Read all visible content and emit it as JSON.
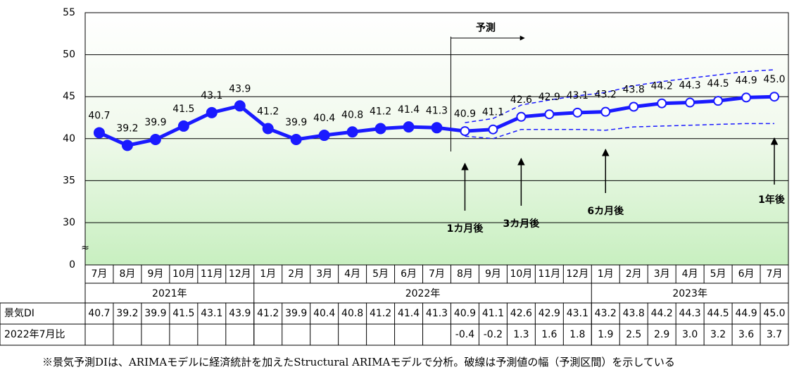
{
  "chart_data": {
    "type": "line",
    "ylim": [
      0,
      55
    ],
    "axis_break": [
      0,
      30
    ],
    "yticks": [
      0,
      30,
      35,
      40,
      45,
      50,
      55
    ],
    "categories": [
      "7月",
      "8月",
      "9月",
      "10月",
      "11月",
      "12月",
      "1月",
      "2月",
      "3月",
      "4月",
      "5月",
      "6月",
      "7月",
      "8月",
      "9月",
      "10月",
      "11月",
      "12月",
      "1月",
      "2月",
      "3月",
      "4月",
      "5月",
      "6月",
      "7月"
    ],
    "years": [
      "2021年",
      "2022年",
      "2023年"
    ],
    "series": [
      {
        "name": "景気DI",
        "color": "#1a1aff",
        "values": [
          40.7,
          39.2,
          39.9,
          41.5,
          43.1,
          43.9,
          41.2,
          39.9,
          40.4,
          40.8,
          41.2,
          41.4,
          41.3,
          40.9,
          41.1,
          42.6,
          42.9,
          43.1,
          43.2,
          43.8,
          44.2,
          44.3,
          44.5,
          44.9,
          45.0
        ],
        "value_labels": [
          "40.7",
          "39.2",
          "39.9",
          "41.5",
          "43.1",
          "43.9",
          "41.2",
          "39.9",
          "40.4",
          "40.8",
          "41.2",
          "41.4",
          "41.3",
          "40.9",
          "41.1",
          "42.6",
          "42.9",
          "43.1",
          "43.2",
          "43.8",
          "44.2",
          "44.3",
          "44.5",
          "44.9",
          "45.0"
        ]
      },
      {
        "color": "#1a1aff",
        "dashed": true,
        "values": [
          null,
          null,
          null,
          null,
          null,
          null,
          null,
          null,
          null,
          null,
          null,
          null,
          null,
          41.9,
          42.4,
          44.0,
          44.6,
          45.1,
          45.5,
          46.3,
          46.8,
          47.2,
          47.6,
          48.0,
          48.2
        ]
      },
      {
        "color": "#1a1aff",
        "dashed": true,
        "values": [
          null,
          null,
          null,
          null,
          null,
          null,
          null,
          null,
          null,
          null,
          null,
          null,
          null,
          40.3,
          40.0,
          41.1,
          41.1,
          41.1,
          41.0,
          41.4,
          41.5,
          41.6,
          41.7,
          41.8,
          41.8
        ]
      }
    ],
    "table": {
      "row_labels": [
        "景気DI",
        "2022年7月比"
      ],
      "diff": [
        null,
        null,
        null,
        null,
        null,
        null,
        null,
        null,
        null,
        null,
        null,
        null,
        null,
        -0.4,
        -0.2,
        1.3,
        1.6,
        1.8,
        1.9,
        2.5,
        2.9,
        3.0,
        3.2,
        3.6,
        3.7
      ],
      "diff_labels": [
        null,
        null,
        null,
        null,
        null,
        null,
        null,
        null,
        null,
        null,
        null,
        null,
        null,
        "-0.4",
        "-0.2",
        "1.3",
        "1.6",
        "1.8",
        "1.9",
        "2.5",
        "2.9",
        "3.0",
        "3.2",
        "3.6",
        "3.7"
      ]
    },
    "forecast_label": "予測",
    "annotations": [
      "1カ月後",
      "3カ月後",
      "6カ月後",
      "1年後"
    ],
    "footnote": "※景気予測DIは、ARIMAモデルに経済統計を加えたStructural ARIMAモデルで分析。破線は予測値の幅（予測区間）を示している"
  }
}
